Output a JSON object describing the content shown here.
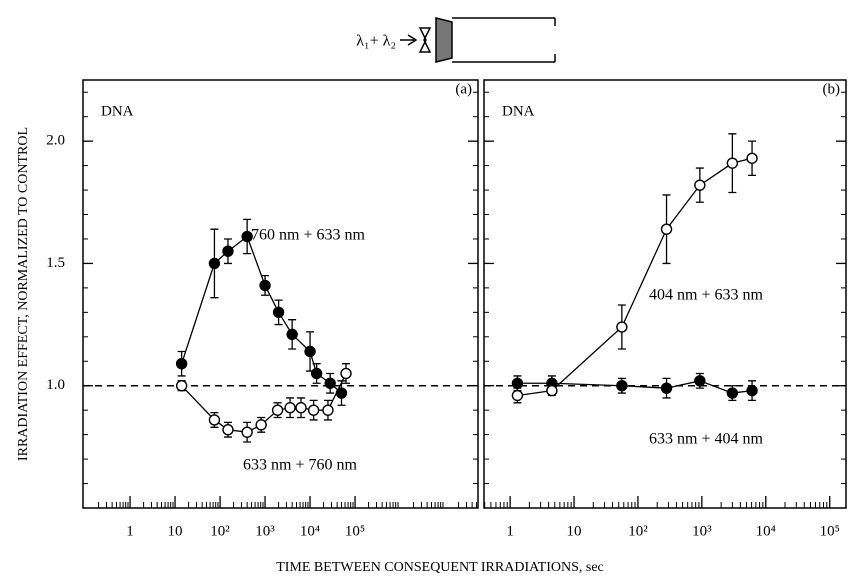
{
  "y_label": "IRRADIATION EFFECT, NORMALIZED TO CONTROL",
  "x_label": "TIME BETWEEN CONSEQUENT IRRADIATIONS, sec",
  "schematic_label": "λ₁+ λ₂",
  "chart_data": [
    {
      "type": "scatter",
      "log_x": true,
      "panel_label": "(a)",
      "annotation": "DNA",
      "hline": 1,
      "xlim": [
        0.09,
        54000000
      ],
      "ylim": [
        0.5,
        2.25
      ],
      "xticks": [
        1,
        10,
        {
          "value": 100,
          "label": "10²"
        },
        {
          "value": 1000,
          "label": "10³"
        },
        {
          "value": 10000,
          "label": "10⁴"
        },
        {
          "value": 100000,
          "label": "10⁵"
        }
      ],
      "yticks": [
        {
          "value": 1,
          "label": "1.0"
        },
        {
          "value": 1.5,
          "label": "1.5"
        },
        {
          "value": 2,
          "label": "2.0"
        }
      ],
      "ytick_labels": true,
      "series": [
        {
          "name": "760 nm + 633 nm",
          "marker": "filled",
          "color": "#000000",
          "x": [
            14,
            75,
            150,
            400,
            1000,
            2000,
            4000,
            10000,
            14000,
            28000,
            50000
          ],
          "values": [
            1.09,
            1.5,
            1.55,
            1.61,
            1.41,
            1.3,
            1.21,
            1.14,
            1.05,
            1.01,
            0.97
          ],
          "errors": [
            0.05,
            0.14,
            0.05,
            0.07,
            0.04,
            0.05,
            0.06,
            0.08,
            0.04,
            0.04,
            0.05
          ]
        },
        {
          "name": "633 nm + 760 nm",
          "marker": "open",
          "color": "#000000",
          "x": [
            14,
            75,
            150,
            400,
            820,
            1900,
            3600,
            6300,
            12000,
            25000,
            63000
          ],
          "values": [
            1,
            0.86,
            0.82,
            0.81,
            0.84,
            0.9,
            0.91,
            0.91,
            0.9,
            0.9,
            1.05
          ],
          "errors": [
            0.02,
            0.03,
            0.03,
            0.04,
            0.03,
            0.03,
            0.04,
            0.04,
            0.04,
            0.04,
            0.04
          ]
        }
      ]
    },
    {
      "type": "scatter",
      "log_x": true,
      "panel_label": "(b)",
      "annotation": "DNA",
      "hline": 1,
      "xlim": [
        0.39,
        180000
      ],
      "ylim": [
        0.5,
        2.25
      ],
      "xticks": [
        1,
        10,
        {
          "value": 100,
          "label": "10²"
        },
        {
          "value": 1000,
          "label": "10³"
        },
        {
          "value": 10000,
          "label": "10⁴"
        },
        {
          "value": 100000,
          "label": "10⁵"
        }
      ],
      "yticks": [
        1,
        1.5,
        2
      ],
      "ytick_labels": false,
      "series": [
        {
          "name": "633 nm + 404 nm",
          "marker": "filled",
          "color": "#000000",
          "x": [
            1.3,
            4.5,
            56,
            280,
            930,
            3000,
            6100
          ],
          "values": [
            1.01,
            1.01,
            1,
            0.99,
            1.02,
            0.97,
            0.98
          ],
          "errors": [
            0.03,
            0.03,
            0.03,
            0.04,
            0.03,
            0.03,
            0.04
          ]
        },
        {
          "name": "404 nm + 633 nm",
          "marker": "open",
          "color": "#000000",
          "x": [
            1.3,
            4.5,
            56,
            280,
            930,
            3000,
            6100
          ],
          "values": [
            0.96,
            0.98,
            1.24,
            1.64,
            1.82,
            1.91,
            1.93
          ],
          "errors": [
            0.03,
            0.02,
            0.09,
            0.14,
            0.07,
            0.12,
            0.07
          ]
        }
      ]
    }
  ]
}
